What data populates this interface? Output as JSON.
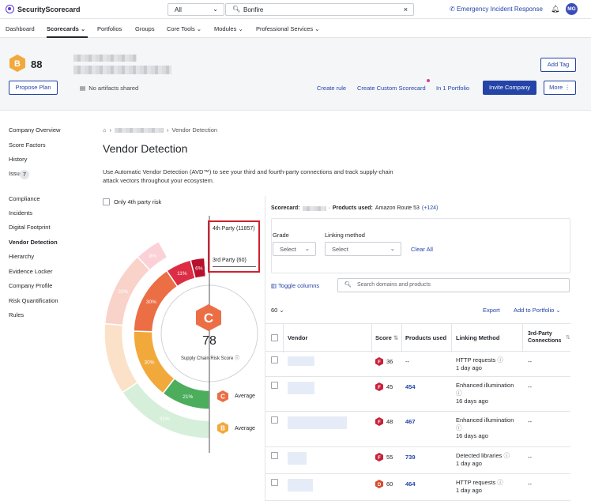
{
  "app": {
    "brand": "SecurityScorecard",
    "search_scope": "All",
    "search_value": "Bonfire",
    "emergency": "Emergency Incident Response",
    "avatar": "MG"
  },
  "nav": {
    "items": [
      "Dashboard",
      "Scorecards",
      "Portfolios",
      "Groups",
      "Core Tools",
      "Modules",
      "Professional Services"
    ]
  },
  "company": {
    "grade": "B",
    "score": "88",
    "artifacts": "No artifacts shared",
    "propose_plan": "Propose Plan",
    "add_tag": "Add Tag",
    "create_rule": "Create rule",
    "create_custom": "Create Custom Scorecard",
    "in_portfolio": "In 1 Portfolio",
    "invite": "Invite Company",
    "more": "More"
  },
  "sidebar": {
    "group1": [
      "Company Overview",
      "Score Factors",
      "History",
      "Issues"
    ],
    "issues_count": "7",
    "group2": [
      "Compliance",
      "Incidents",
      "Digital Footprint",
      "Vendor Detection",
      "Hierarchy",
      "Evidence Locker",
      "Company Profile",
      "Risk Quantification",
      "Rules"
    ]
  },
  "page": {
    "breadcrumb_current": "Vendor Detection",
    "title": "Vendor Detection",
    "description": "Use Automatic Vendor Detection (AVD™) to see your third and fourth-party connections and track supply-chain attack vectors throughout your ecosystem.",
    "only4th": "Only 4th party risk"
  },
  "donut": {
    "fourth_label": "4th Party (11857)",
    "third_label": "3rd Party (60)",
    "center_grade": "C",
    "center_score": "78",
    "center_label": "Supply Chain Risk Score",
    "outer": [
      {
        "label": "31%",
        "value": 31,
        "color": "#d6efda"
      },
      {
        "label": "",
        "value": 22,
        "color": "#fbe1c8"
      },
      {
        "label": "23%",
        "value": 23,
        "color": "#f9d2c9"
      },
      {
        "label": "8%",
        "value": 8,
        "color": "#fbd0d6"
      },
      {
        "label": "",
        "value": 16,
        "color": "#ffffff"
      }
    ],
    "inner": [
      {
        "label": "21%",
        "value": 21,
        "color": "#4cae5c"
      },
      {
        "label": "30%",
        "value": 30,
        "color": "#f2a93b"
      },
      {
        "label": "30%",
        "value": 30,
        "color": "#ec6e45"
      },
      {
        "label": "11%",
        "value": 11,
        "color": "#dd2d44"
      },
      {
        "label": "6%",
        "value": 6,
        "color": "#b8112c"
      },
      {
        "label": "",
        "value": 2,
        "color": "#ffffff"
      }
    ],
    "avg": [
      {
        "grade": "C",
        "label": "Average",
        "color": "#ec6e45"
      },
      {
        "grade": "B",
        "label": "Average",
        "color": "#f2a93b"
      }
    ]
  },
  "scorecard": {
    "label": "Scorecard:",
    "products_label": "Products used:",
    "products_value": "Amazon Route 53",
    "products_more": "(+124)"
  },
  "filters": {
    "grade_label": "Grade",
    "grade_value": "Select",
    "linking_label": "Linking method",
    "linking_value": "Select",
    "clear": "Clear All"
  },
  "table": {
    "toggle": "Toggle columns",
    "search_placeholder": "Search domains and products",
    "page_size": "60",
    "export": "Export",
    "add_portfolio": "Add to Portfolio",
    "headers": [
      "Vendor",
      "Score",
      "Products used",
      "Linking Method",
      "3rd-Party Connections"
    ],
    "rows": [
      {
        "grade": "F",
        "score": "36",
        "products": "--",
        "method": "HTTP requests",
        "age": "1 day ago",
        "conn": "--",
        "color": "#c8203a"
      },
      {
        "grade": "F",
        "score": "45",
        "products": "454",
        "method": "Enhanced illumination",
        "age": "16 days ago",
        "conn": "--",
        "color": "#c8203a"
      },
      {
        "grade": "F",
        "score": "48",
        "products": "467",
        "method": "Enhanced illumination",
        "age": "16 days ago",
        "conn": "--",
        "color": "#c8203a"
      },
      {
        "grade": "F",
        "score": "55",
        "products": "739",
        "method": "Detected libraries",
        "age": "1 day ago",
        "conn": "--",
        "color": "#c8203a"
      },
      {
        "grade": "D",
        "score": "60",
        "products": "464",
        "method": "HTTP requests",
        "age": "1 day ago",
        "conn": "--",
        "color": "#d64a2e"
      }
    ]
  }
}
